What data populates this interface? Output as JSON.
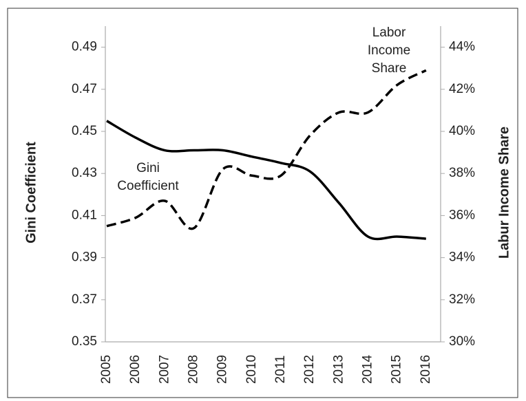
{
  "chart_data": {
    "type": "line",
    "categories": [
      "2005",
      "2006",
      "2007",
      "2008",
      "2009",
      "2010",
      "2011",
      "2012",
      "2013",
      "2014",
      "2015",
      "2016"
    ],
    "series": [
      {
        "name": "Gini Coefficient",
        "color": "#000000",
        "style": "solid",
        "axis": "y",
        "values": [
          0.455,
          0.447,
          0.441,
          0.441,
          0.441,
          0.438,
          0.435,
          0.431,
          0.416,
          0.4,
          0.4,
          0.399
        ]
      },
      {
        "name": "Labor Income Share",
        "color": "#000000",
        "style": "dashed",
        "axis": "y2",
        "values": [
          35.5,
          35.9,
          36.7,
          35.4,
          38.2,
          37.9,
          37.9,
          39.8,
          40.9,
          40.9,
          42.2,
          42.9
        ]
      }
    ],
    "annotations": [
      [
        "Gini",
        "Coefficient"
      ],
      [
        "Labor",
        "Income",
        "Share"
      ]
    ],
    "ylabel": "Gini Coefficient",
    "y2label": "Labur Income Share",
    "ylim": [
      0.35,
      0.5
    ],
    "yticks": [
      0.35,
      0.37,
      0.39,
      0.41,
      0.43,
      0.45,
      0.47,
      0.49
    ],
    "y2lim": [
      30,
      45
    ],
    "y2ticks": [
      {
        "value": 30,
        "label": "30%"
      },
      {
        "value": 32,
        "label": "32%"
      },
      {
        "value": 34,
        "label": "34%"
      },
      {
        "value": 36,
        "label": "36%"
      },
      {
        "value": 38,
        "label": "38%"
      },
      {
        "value": 40,
        "label": "40%"
      },
      {
        "value": 42,
        "label": "42%"
      },
      {
        "value": 44,
        "label": "44%"
      }
    ]
  }
}
